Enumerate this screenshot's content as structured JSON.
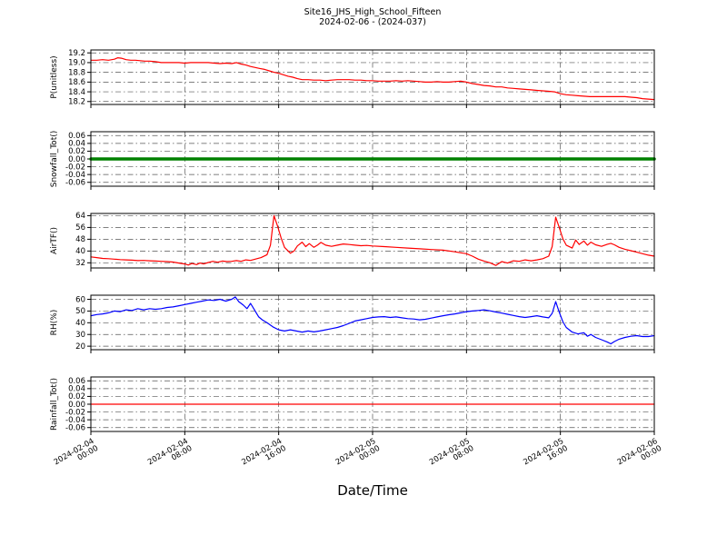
{
  "title": {
    "line1": "Site16_JHS_High_School_Fifteen",
    "line2": "2024-02-06 - (2024-037)"
  },
  "x_axis": {
    "label": "Date/Time",
    "unit": "hours since 2024-02-04 00:00",
    "range": [
      0,
      48
    ],
    "ticks": [
      0,
      8,
      16,
      24,
      32,
      40,
      48
    ],
    "tick_labels": [
      [
        "2024-02-04",
        "00:00"
      ],
      [
        "2024-02-04",
        "08:00"
      ],
      [
        "2024-02-04",
        "16:00"
      ],
      [
        "2024-02-05",
        "00:00"
      ],
      [
        "2024-02-05",
        "08:00"
      ],
      [
        "2024-02-05",
        "16:00"
      ],
      [
        "2024-02-06",
        "00:00"
      ]
    ]
  },
  "chart_data": [
    {
      "type": "line",
      "ylabel": "P(unitless)",
      "color": "#ff0000",
      "line_width": 1.2,
      "ylim": [
        18.14,
        19.26
      ],
      "yticks": [
        18.2,
        18.4,
        18.6,
        18.8,
        19.0,
        19.2
      ],
      "ytick_labels": [
        "18.2",
        "18.4",
        "18.6",
        "18.8",
        "19.0",
        "19.2"
      ],
      "grid": true,
      "x": [
        0,
        0.5,
        1,
        1.5,
        2,
        2.3,
        2.6,
        3,
        3.4,
        3.8,
        4.2,
        4.6,
        5,
        5.5,
        6,
        6.5,
        7,
        7.5,
        8,
        8.5,
        9,
        9.5,
        10,
        10.5,
        11,
        11.5,
        12,
        12.4,
        12.8,
        13.2,
        13.6,
        14,
        14.4,
        14.8,
        15.2,
        15.6,
        16,
        16.4,
        16.8,
        17.2,
        17.6,
        18,
        18.5,
        19,
        19.5,
        20,
        20.5,
        21,
        21.5,
        22,
        22.5,
        23,
        23.5,
        24,
        24.5,
        25,
        25.5,
        26,
        26.5,
        27,
        27.5,
        28,
        28.5,
        29,
        29.5,
        30,
        30.5,
        31,
        31.5,
        32,
        32.5,
        33,
        33.5,
        34,
        34.5,
        35,
        35.5,
        36,
        36.5,
        37,
        37.5,
        38,
        38.5,
        39,
        39.5,
        40,
        40.5,
        41,
        41.5,
        42,
        42.5,
        43,
        43.5,
        44,
        44.5,
        45,
        45.5,
        46,
        46.5,
        47,
        47.5,
        48
      ],
      "values": [
        19.05,
        19.05,
        19.06,
        19.05,
        19.07,
        19.1,
        19.09,
        19.06,
        19.05,
        19.05,
        19.04,
        19.03,
        19.03,
        19.02,
        19.0,
        19.0,
        19.0,
        19.0,
        18.99,
        19.0,
        19.0,
        19.0,
        19.0,
        18.99,
        18.98,
        18.99,
        18.98,
        19.0,
        18.97,
        18.95,
        18.92,
        18.9,
        18.88,
        18.86,
        18.83,
        18.8,
        18.78,
        18.75,
        18.72,
        18.7,
        18.67,
        18.65,
        18.65,
        18.64,
        18.64,
        18.63,
        18.64,
        18.65,
        18.65,
        18.65,
        18.64,
        18.64,
        18.63,
        18.63,
        18.62,
        18.62,
        18.62,
        18.63,
        18.62,
        18.63,
        18.62,
        18.61,
        18.6,
        18.6,
        18.61,
        18.6,
        18.6,
        18.61,
        18.62,
        18.6,
        18.57,
        18.55,
        18.53,
        18.52,
        18.5,
        18.5,
        18.48,
        18.47,
        18.46,
        18.45,
        18.44,
        18.43,
        18.42,
        18.41,
        18.4,
        18.36,
        18.34,
        18.33,
        18.32,
        18.31,
        18.3,
        18.3,
        18.3,
        18.3,
        18.3,
        18.3,
        18.3,
        18.29,
        18.28,
        18.26,
        18.25,
        18.24
      ]
    },
    {
      "type": "line",
      "ylabel": "Snowfall_Tot()",
      "color": "#008000",
      "line_width": 3.5,
      "ylim": [
        -0.07,
        0.07
      ],
      "yticks": [
        -0.06,
        -0.04,
        -0.02,
        0.0,
        0.02,
        0.04,
        0.06
      ],
      "ytick_labels": [
        "-0.06",
        "-0.04",
        "-0.02",
        "0.00",
        "0.02",
        "0.04",
        "0.06"
      ],
      "grid": true,
      "x": [
        0,
        48
      ],
      "values": [
        0.0,
        0.0
      ]
    },
    {
      "type": "line",
      "ylabel": "AirTF()",
      "color": "#ff0000",
      "line_width": 1.2,
      "ylim": [
        28.5,
        65.5
      ],
      "yticks": [
        32,
        40,
        48,
        56,
        64
      ],
      "ytick_labels": [
        "32",
        "40",
        "48",
        "56",
        "64"
      ],
      "grid": true,
      "x": [
        0,
        0.5,
        1,
        1.5,
        2,
        2.5,
        3,
        3.5,
        4,
        4.5,
        5,
        5.5,
        6,
        6.5,
        7,
        7.5,
        8,
        8.3,
        8.6,
        9,
        9.3,
        9.6,
        10,
        10.4,
        10.8,
        11.2,
        11.6,
        12,
        12.4,
        12.8,
        13.2,
        13.6,
        14,
        14.5,
        15,
        15.3,
        15.6,
        15.9,
        16.2,
        16.5,
        17,
        17.3,
        17.6,
        18,
        18.3,
        18.6,
        19,
        19.3,
        19.6,
        20,
        20.5,
        21,
        21.5,
        22,
        22.5,
        23,
        23.5,
        24,
        25,
        26,
        27,
        28,
        29,
        30,
        31,
        32,
        32.5,
        33,
        33.5,
        34,
        34.5,
        35,
        35.5,
        36,
        36.5,
        37,
        37.5,
        38,
        38.5,
        39,
        39.3,
        39.6,
        39.9,
        40.2,
        40.5,
        41,
        41.3,
        41.6,
        42,
        42.3,
        42.6,
        43,
        43.5,
        44,
        44.3,
        44.6,
        45,
        45.5,
        46,
        46.5,
        47,
        47.5,
        48
      ],
      "values": [
        36,
        35.5,
        35,
        34.8,
        34.5,
        34.2,
        34,
        33.8,
        33.5,
        33.6,
        33.4,
        33.2,
        33,
        32.8,
        32.5,
        31.8,
        31.2,
        30.5,
        31.5,
        30.8,
        31.8,
        31.2,
        32.2,
        33,
        32.4,
        33.2,
        32.8,
        33,
        33.5,
        33,
        34,
        33.6,
        34.5,
        35.5,
        37.5,
        44,
        64,
        57,
        49,
        42.5,
        38.5,
        40,
        43.5,
        46,
        43,
        45,
        42.5,
        44,
        45.8,
        44,
        43.2,
        44,
        44.8,
        44.4,
        44,
        43.6,
        43.8,
        43.4,
        43,
        42.5,
        42,
        41.5,
        41,
        40.6,
        39.5,
        38.2,
        36.5,
        34.5,
        33.2,
        32,
        30.2,
        32.8,
        31.8,
        33.4,
        33,
        34,
        33.4,
        34,
        34.8,
        36.5,
        43,
        63,
        56,
        48.5,
        44,
        42,
        47.5,
        44.5,
        46.8,
        44,
        46,
        44.2,
        43.2,
        44.6,
        45.2,
        44.2,
        42.5,
        41.2,
        40.2,
        39.2,
        38.2,
        37.2,
        36.5
      ]
    },
    {
      "type": "line",
      "ylabel": "RH(%)",
      "color": "#0000ff",
      "line_width": 1.2,
      "ylim": [
        17,
        63.5
      ],
      "yticks": [
        20,
        30,
        40,
        50,
        60
      ],
      "ytick_labels": [
        "20",
        "30",
        "40",
        "50",
        "60"
      ],
      "grid": true,
      "x": [
        0,
        0.5,
        1,
        1.5,
        2,
        2.5,
        3,
        3.5,
        4,
        4.5,
        5,
        5.5,
        6,
        6.5,
        7,
        7.5,
        8,
        8.5,
        9,
        9.5,
        10,
        10.5,
        11,
        11.5,
        12,
        12.3,
        12.6,
        13,
        13.3,
        13.6,
        14,
        14.3,
        14.6,
        15,
        15.5,
        16,
        16.5,
        17,
        17.5,
        18,
        18.5,
        19,
        19.5,
        20,
        20.5,
        21,
        21.5,
        22,
        22.5,
        23,
        23.5,
        24,
        24.5,
        25,
        25.5,
        26,
        26.5,
        27,
        27.5,
        28,
        28.5,
        29,
        29.5,
        30,
        30.5,
        31,
        31.5,
        32,
        32.5,
        33,
        33.5,
        34,
        34.5,
        35,
        35.5,
        36,
        36.5,
        37,
        37.5,
        38,
        38.5,
        39,
        39.3,
        39.6,
        39.9,
        40.2,
        40.5,
        41,
        41.5,
        42,
        42.3,
        42.6,
        43,
        43.5,
        44,
        44.3,
        44.6,
        45,
        45.5,
        46,
        46.5,
        47,
        47.5,
        48
      ],
      "values": [
        46,
        47,
        47.5,
        48.5,
        50,
        49.5,
        51,
        50.5,
        52,
        51,
        52,
        51.5,
        52,
        53,
        53.5,
        54.5,
        55.5,
        56.5,
        57.5,
        58.5,
        59.5,
        59,
        60,
        58.5,
        60,
        62,
        58,
        55,
        52,
        56.5,
        50,
        45,
        42.5,
        40,
        36.5,
        34,
        33,
        34,
        33,
        32,
        33,
        32.2,
        33,
        34,
        35,
        36,
        37.5,
        39.5,
        41.5,
        42.5,
        43.5,
        44.5,
        45,
        45.2,
        44.5,
        45,
        44.2,
        43.5,
        43.2,
        42.5,
        43,
        44,
        45,
        46,
        46.8,
        47.5,
        48.5,
        49.5,
        50,
        50.5,
        51,
        50.2,
        49.2,
        48.2,
        47.2,
        46.2,
        45.2,
        44.5,
        45.2,
        46,
        45,
        44.2,
        48,
        58,
        49,
        41,
        36,
        32,
        30.5,
        31.5,
        28.5,
        30,
        27.5,
        25.5,
        23.5,
        22,
        24,
        26,
        27.5,
        28.5,
        29,
        28.2,
        28.2,
        29
      ]
    },
    {
      "type": "line",
      "ylabel": "Rainfall_Tot()",
      "color": "#ff0000",
      "line_width": 1.2,
      "ylim": [
        -0.07,
        0.07
      ],
      "yticks": [
        -0.06,
        -0.04,
        -0.02,
        0.0,
        0.02,
        0.04,
        0.06
      ],
      "ytick_labels": [
        "-0.06",
        "-0.04",
        "-0.02",
        "0.00",
        "0.02",
        "0.04",
        "0.06"
      ],
      "grid": true,
      "x": [
        0,
        48
      ],
      "values": [
        0.0,
        0.0
      ]
    }
  ]
}
